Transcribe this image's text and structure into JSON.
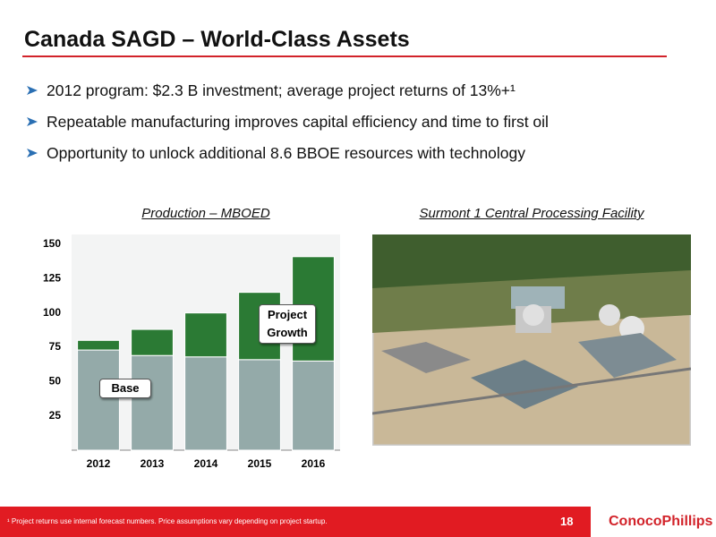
{
  "header": {
    "title": "Canada SAGD – World-Class Assets"
  },
  "bullets": [
    "2012 program: $2.3 B investment; average project returns of 13%+¹",
    "Repeatable manufacturing improves capital efficiency and time to first oil",
    "Opportunity to unlock additional 8.6 BBOE resources with technology"
  ],
  "chart_data": {
    "type": "stacked-bar",
    "title": "Production – MBOED",
    "categories": [
      "2012",
      "2013",
      "2014",
      "2015",
      "2016"
    ],
    "series": [
      {
        "name": "Base",
        "color": "#94aaa9",
        "values": [
          73,
          69,
          68,
          66,
          65
        ]
      },
      {
        "name": "Project Growth",
        "color": "#2b7a34",
        "values": [
          7,
          19,
          32,
          49,
          76
        ]
      }
    ],
    "ylim": [
      0,
      150
    ],
    "yticks": [
      25,
      50,
      75,
      100,
      125,
      150
    ]
  },
  "photo": {
    "caption": "Surmont 1 Central Processing Facility"
  },
  "footer": {
    "footnote": "¹ Project returns use internal forecast numbers. Price assumptions vary depending on project startup.",
    "page": "18",
    "logo": "ConocoPhillips"
  }
}
